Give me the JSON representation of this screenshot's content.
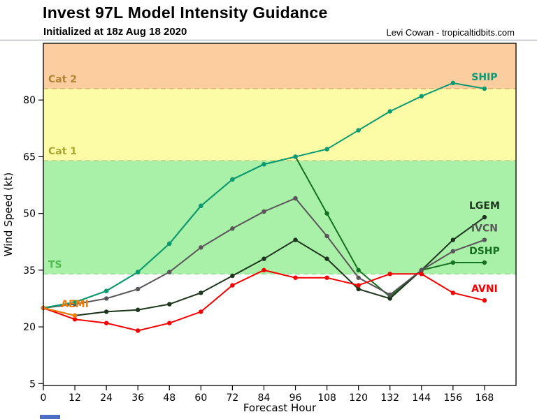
{
  "header": {
    "title": "Invest 97L Model Intensity Guidance",
    "subtitle": "Initialized at 18z Aug 18 2020",
    "credit": "Levi Cowan - tropicaltidbits.com"
  },
  "chart_data": {
    "type": "line",
    "title": "Invest 97L Model Intensity Guidance",
    "xlabel": "Forecast Hour",
    "ylabel": "Wind Speed (kt)",
    "grid": false,
    "legend": "inline-labels-at-line-end",
    "xlim": [
      0,
      180
    ],
    "ylim": [
      4.5,
      95
    ],
    "x_ticks": [
      0,
      12,
      24,
      36,
      48,
      60,
      72,
      84,
      96,
      108,
      120,
      132,
      144,
      156,
      168
    ],
    "y_ticks": [
      5,
      20,
      35,
      50,
      65,
      80
    ],
    "x": [
      0,
      12,
      24,
      36,
      48,
      60,
      72,
      84,
      96,
      108,
      120,
      132,
      144,
      156,
      168
    ],
    "series": [
      {
        "name": "DSHP",
        "color": "#15701f",
        "values": [
          25,
          26.5,
          29.5,
          34.5,
          42,
          52,
          59,
          63,
          65,
          50,
          35,
          28,
          35,
          37,
          37
        ]
      },
      {
        "name": "LGEM",
        "color": "#1d361d",
        "values": [
          25,
          23,
          24,
          24.5,
          26,
          29,
          33.5,
          38,
          43,
          38,
          30,
          27.5,
          35,
          43,
          49
        ]
      },
      {
        "name": "IVCN",
        "color": "#5a5558",
        "values": [
          25,
          26,
          27.5,
          30,
          34.5,
          41,
          46,
          50.5,
          54,
          44,
          33,
          28.5,
          35,
          40,
          43
        ]
      },
      {
        "name": "SHIP",
        "color": "#0a9b72",
        "values": [
          25,
          26.5,
          29.5,
          34.5,
          42,
          52,
          59,
          63,
          65,
          67,
          72,
          77,
          81,
          84.5,
          83
        ]
      },
      {
        "name": "AVNI",
        "color": "#f50000",
        "values": [
          25,
          22,
          21,
          19,
          21,
          24,
          31,
          35,
          33,
          33,
          31,
          34,
          34,
          29,
          27
        ]
      },
      {
        "name": "AEMI",
        "color": "#f77b00",
        "values": [
          25,
          23,
          null,
          null,
          null,
          null,
          null,
          null,
          null,
          null,
          null,
          null,
          null,
          null,
          null
        ]
      }
    ],
    "thresholds": [
      {
        "label": "TS",
        "value": 34,
        "band_color": "#a9f1a9",
        "line_color": "#92dc92",
        "label_color": "#53b953"
      },
      {
        "label": "Cat 1",
        "value": 64,
        "band_color": "#fdfca6",
        "line_color": "#cdd07d",
        "label_color": "#a8a832"
      },
      {
        "label": "Cat 2",
        "value": 83,
        "band_color": "#fbcd9f",
        "line_color": "#dcab72",
        "label_color": "#b08438"
      }
    ]
  },
  "misc": {
    "logo_fragment_color": "#4a6fc4"
  }
}
